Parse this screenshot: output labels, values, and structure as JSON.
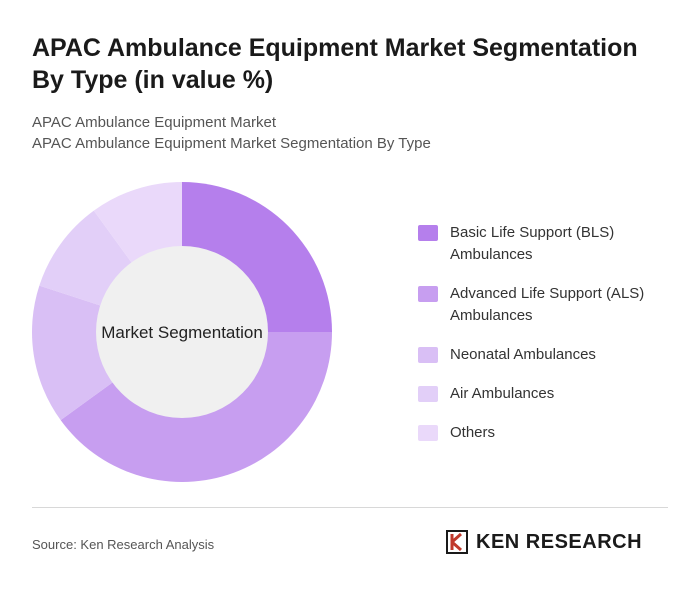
{
  "chart_data": {
    "type": "donut",
    "title": "APAC Ambulance Equipment Market Segmentation By Type (in value %)",
    "subtitles": [
      "APAC Ambulance Equipment Market",
      "APAC Ambulance Equipment Market Segmentation By Type"
    ],
    "center_label": "Market Segmentation",
    "categories": [
      "Basic Life Support (BLS) Ambulances",
      "Advanced Life Support (ALS) Ambulances",
      "Neonatal Ambulances",
      "Air Ambulances",
      "Others"
    ],
    "values": [
      25,
      40,
      15,
      10,
      10
    ],
    "colors": [
      "#b57fec",
      "#c79ef0",
      "#d9bff5",
      "#e2cff8",
      "#ead9fa"
    ],
    "legend": "right"
  },
  "source": "Source: Ken Research Analysis",
  "brand": "KEN RESEARCH"
}
